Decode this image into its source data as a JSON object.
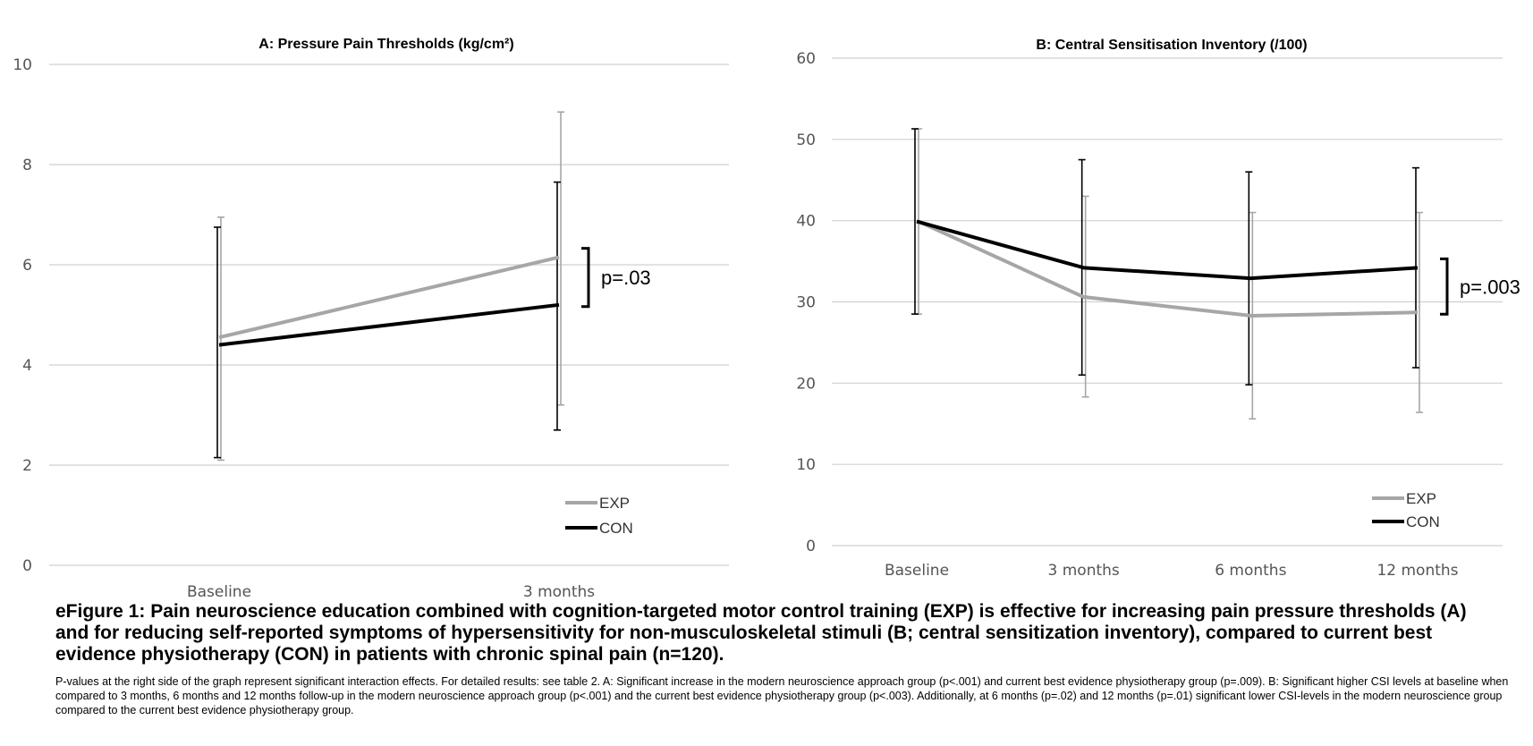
{
  "colors": {
    "exp": "#a6a6a6",
    "con": "#000000",
    "grid": "#d0d0d0"
  },
  "chart_data": [
    {
      "type": "line",
      "title": "A: Pressure Pain Thresholds (kg/cm²)",
      "categories": [
        "Baseline",
        "3 months"
      ],
      "ylim": [
        0,
        10
      ],
      "yticks": [
        0,
        2,
        4,
        6,
        8,
        10
      ],
      "series": [
        {
          "name": "EXP",
          "values": [
            4.55,
            6.15
          ],
          "err_low": [
            2.1,
            3.2
          ],
          "err_high": [
            6.95,
            9.05
          ]
        },
        {
          "name": "CON",
          "values": [
            4.4,
            5.2
          ],
          "err_low": [
            2.15,
            2.7
          ],
          "err_high": [
            6.75,
            7.65
          ]
        }
      ],
      "legend": [
        "EXP",
        "CON"
      ],
      "annotation": "p=.03"
    },
    {
      "type": "line",
      "title": "B: Central Sensitisation Inventory (/100)",
      "categories": [
        "Baseline",
        "3 months",
        "6 months",
        "12 months"
      ],
      "ylim": [
        0,
        60
      ],
      "yticks": [
        0,
        10,
        20,
        30,
        40,
        50,
        60
      ],
      "series": [
        {
          "name": "EXP",
          "values": [
            40,
            30.6,
            28.3,
            28.7
          ],
          "err_low": [
            28.5,
            18.3,
            15.6,
            16.4
          ],
          "err_high": [
            51.3,
            43,
            41,
            41
          ]
        },
        {
          "name": "CON",
          "values": [
            39.9,
            34.2,
            32.9,
            34.2
          ],
          "err_low": [
            28.5,
            21,
            19.8,
            21.9
          ],
          "err_high": [
            51.3,
            47.5,
            46,
            46.5
          ]
        }
      ],
      "legend": [
        "EXP",
        "CON"
      ],
      "annotation": "p=.003"
    }
  ],
  "caption": {
    "title": "eFigure 1: Pain neuroscience education combined with cognition-targeted motor control training (EXP) is effective for increasing pain pressure thresholds (A) and for reducing self-reported symptoms of hypersensitivity for non-musculoskeletal stimuli (B; central sensitization inventory), compared to current best evidence physiotherapy (CON) in patients with chronic spinal pain (n=120).",
    "body": "P-values at the right side of the graph represent significant interaction effects. For detailed results: see table 2. A: Significant increase in the modern neuroscience approach group (p<.001) and current best evidence physiotherapy group (p=.009). B: Significant higher CSI levels at baseline when compared to 3 months, 6 months and 12 months follow-up in the modern neuroscience approach group (p<.001) and the current best evidence physiotherapy group (p<.003). Additionally, at 6 months (p=.02) and 12 months (p=.01) significant lower CSI-levels in the modern neuroscience group compared to the current best evidence physiotherapy group."
  }
}
